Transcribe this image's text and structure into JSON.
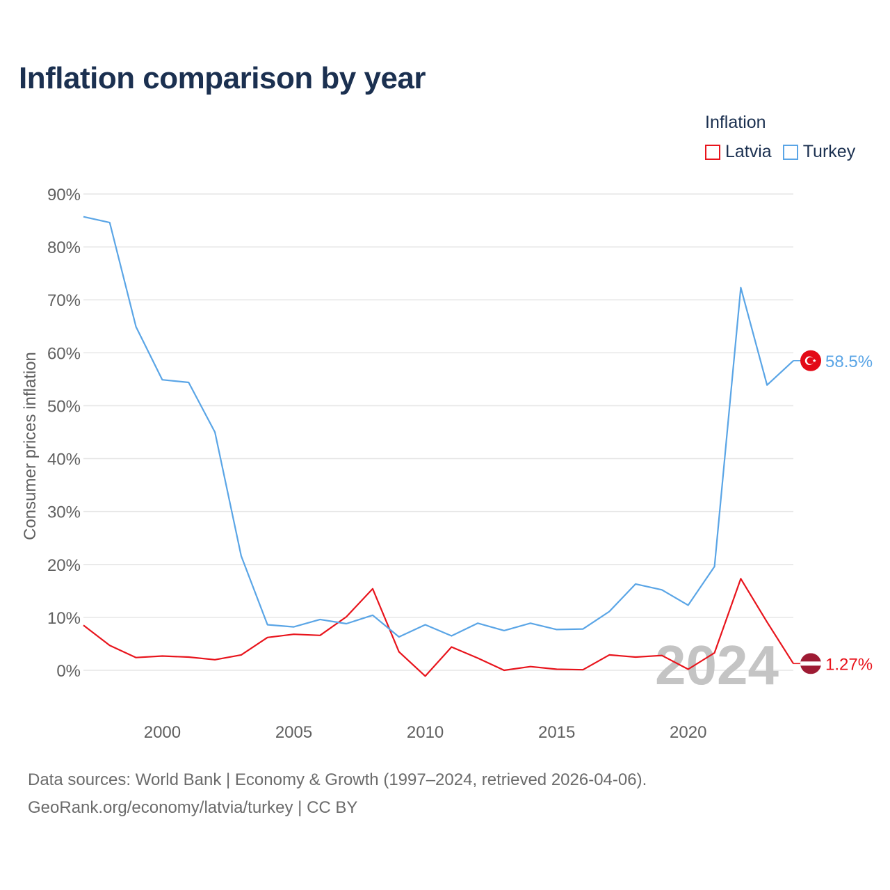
{
  "header": {
    "title": "Inflation comparison by year"
  },
  "legend": {
    "title": "Inflation",
    "items": [
      {
        "label": "Latvia",
        "color": "#e8141c"
      },
      {
        "label": "Turkey",
        "color": "#5aa5e6"
      }
    ]
  },
  "chart_data": {
    "type": "line",
    "title": "Inflation comparison by year",
    "ylabel": "Consumer prices inflation",
    "xlabel": "",
    "x": [
      1997,
      1998,
      1999,
      2000,
      2001,
      2002,
      2003,
      2004,
      2005,
      2006,
      2007,
      2008,
      2009,
      2010,
      2011,
      2012,
      2013,
      2014,
      2015,
      2016,
      2017,
      2018,
      2019,
      2020,
      2021,
      2022,
      2023,
      2024
    ],
    "xlim": [
      1997,
      2024
    ],
    "ylim": [
      0,
      90
    ],
    "yticks": [
      0,
      10,
      20,
      30,
      40,
      50,
      60,
      70,
      80,
      90
    ],
    "ytick_labels": [
      "0%",
      "10%",
      "20%",
      "30%",
      "40%",
      "50%",
      "60%",
      "70%",
      "80%",
      "90%"
    ],
    "xticks": [
      2000,
      2005,
      2010,
      2015,
      2020
    ],
    "xtick_labels": [
      "2000",
      "2005",
      "2010",
      "2015",
      "2020"
    ],
    "grid": true,
    "series": [
      {
        "name": "Latvia",
        "color": "#e8141c",
        "end_label": "1.27%",
        "values": [
          8.5,
          4.7,
          2.4,
          2.7,
          2.5,
          2.0,
          2.9,
          6.2,
          6.8,
          6.6,
          10.1,
          15.4,
          3.5,
          -1.1,
          4.4,
          2.3,
          0.0,
          0.7,
          0.2,
          0.1,
          2.9,
          2.5,
          2.8,
          0.2,
          3.3,
          17.3,
          9.1,
          1.27
        ]
      },
      {
        "name": "Turkey",
        "color": "#5aa5e6",
        "end_label": "58.5%",
        "values": [
          85.7,
          84.6,
          64.9,
          54.9,
          54.4,
          45.0,
          21.6,
          8.6,
          8.2,
          9.6,
          8.8,
          10.4,
          6.3,
          8.6,
          6.5,
          8.9,
          7.5,
          8.9,
          7.7,
          7.8,
          11.1,
          16.3,
          15.2,
          12.3,
          19.6,
          72.3,
          53.9,
          58.5
        ]
      }
    ],
    "year_watermark": "2024"
  },
  "footer": {
    "line1": "Data sources: World Bank | Economy & Growth (1997–2024, retrieved 2026-04-06).",
    "line2": "GeoRank.org/economy/latvia/turkey | CC BY"
  }
}
